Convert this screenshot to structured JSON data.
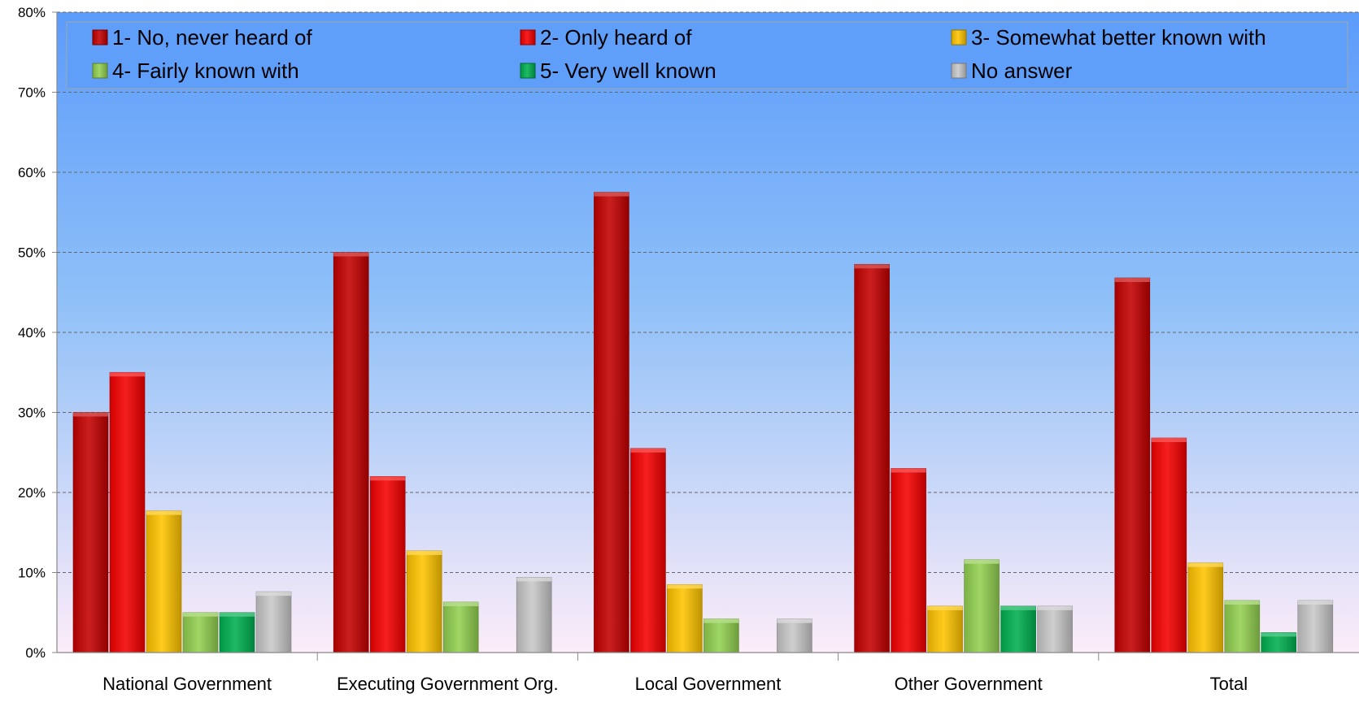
{
  "chart_data": {
    "type": "bar",
    "categories": [
      "National Government",
      "Executing Government Org.",
      "Local Government",
      "Other Government",
      "Total"
    ],
    "series": [
      {
        "name": "1- No, never heard of",
        "values": [
          30,
          50,
          57.5,
          48.5,
          46.8
        ]
      },
      {
        "name": "2- Only heard of",
        "values": [
          35,
          22,
          25.5,
          23,
          26.8
        ]
      },
      {
        "name": "3- Somewhat better known with",
        "values": [
          17.7,
          12.7,
          8.5,
          5.8,
          11.2
        ]
      },
      {
        "name": "4- Fairly known with",
        "values": [
          5,
          6.3,
          4.2,
          11.6,
          6.5
        ]
      },
      {
        "name": "5- Very well known",
        "values": [
          5,
          0,
          0,
          5.8,
          2.5
        ]
      },
      {
        "name": "No answer",
        "values": [
          7.6,
          9.4,
          4.2,
          5.8,
          6.5
        ]
      }
    ],
    "ylim": [
      0,
      80
    ],
    "yticks": [
      "0%",
      "10%",
      "20%",
      "30%",
      "40%",
      "50%",
      "60%",
      "70%",
      "80%"
    ],
    "grid": true,
    "legend_position": "top",
    "colors": {
      "series": [
        "#c40000",
        "#f50000",
        "#ffc400",
        "#92d050",
        "#00b050",
        "#c8c8c8"
      ],
      "background_top": "#5b9bfa",
      "background_bottom": "#fcecf8"
    }
  }
}
